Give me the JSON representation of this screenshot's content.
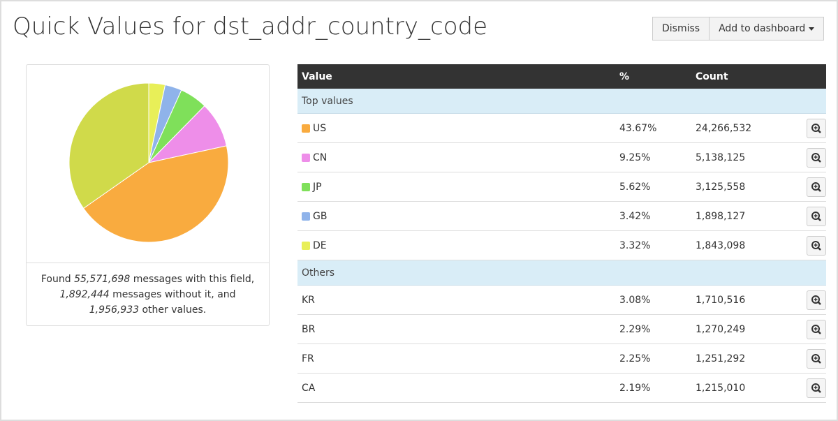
{
  "header": {
    "title": "Quick Values for dst_addr_country_code",
    "buttons": [
      "Dismiss",
      "Add to dashboard"
    ]
  },
  "chart_data": {
    "type": "pie",
    "values": [
      3.32,
      3.42,
      5.62,
      9.25,
      43.67,
      34.72
    ],
    "colors": [
      "#e8ef58",
      "#8fb3ea",
      "#7fe05a",
      "#ee8ee9",
      "#f9ab3f",
      "#d0da4a"
    ]
  },
  "summary": [
    "Found",
    "55,571,698",
    "messages with this field,",
    "1,892,444",
    "messages without it, and",
    "1,956,933",
    "other values."
  ],
  "table": {
    "columns": [
      "Value",
      "%",
      "Count"
    ],
    "groups": [
      {
        "label": "Top values",
        "rows": [
          {
            "value": "US",
            "percent": "43.67%",
            "count": "24,266,532",
            "color": "#f9ab3f"
          },
          {
            "value": "CN",
            "percent": "9.25%",
            "count": "5,138,125",
            "color": "#ee8ee9"
          },
          {
            "value": "JP",
            "percent": "5.62%",
            "count": "3,125,558",
            "color": "#7fe05a"
          },
          {
            "value": "GB",
            "percent": "3.42%",
            "count": "1,898,127",
            "color": "#8fb3ea"
          },
          {
            "value": "DE",
            "percent": "3.32%",
            "count": "1,843,098",
            "color": "#e8ef58"
          }
        ]
      },
      {
        "label": "Others",
        "rows": [
          {
            "value": "KR",
            "percent": "3.08%",
            "count": "1,710,516"
          },
          {
            "value": "BR",
            "percent": "2.29%",
            "count": "1,270,249"
          },
          {
            "value": "FR",
            "percent": "2.25%",
            "count": "1,251,292"
          },
          {
            "value": "CA",
            "percent": "2.19%",
            "count": "1,215,010"
          }
        ]
      }
    ]
  }
}
